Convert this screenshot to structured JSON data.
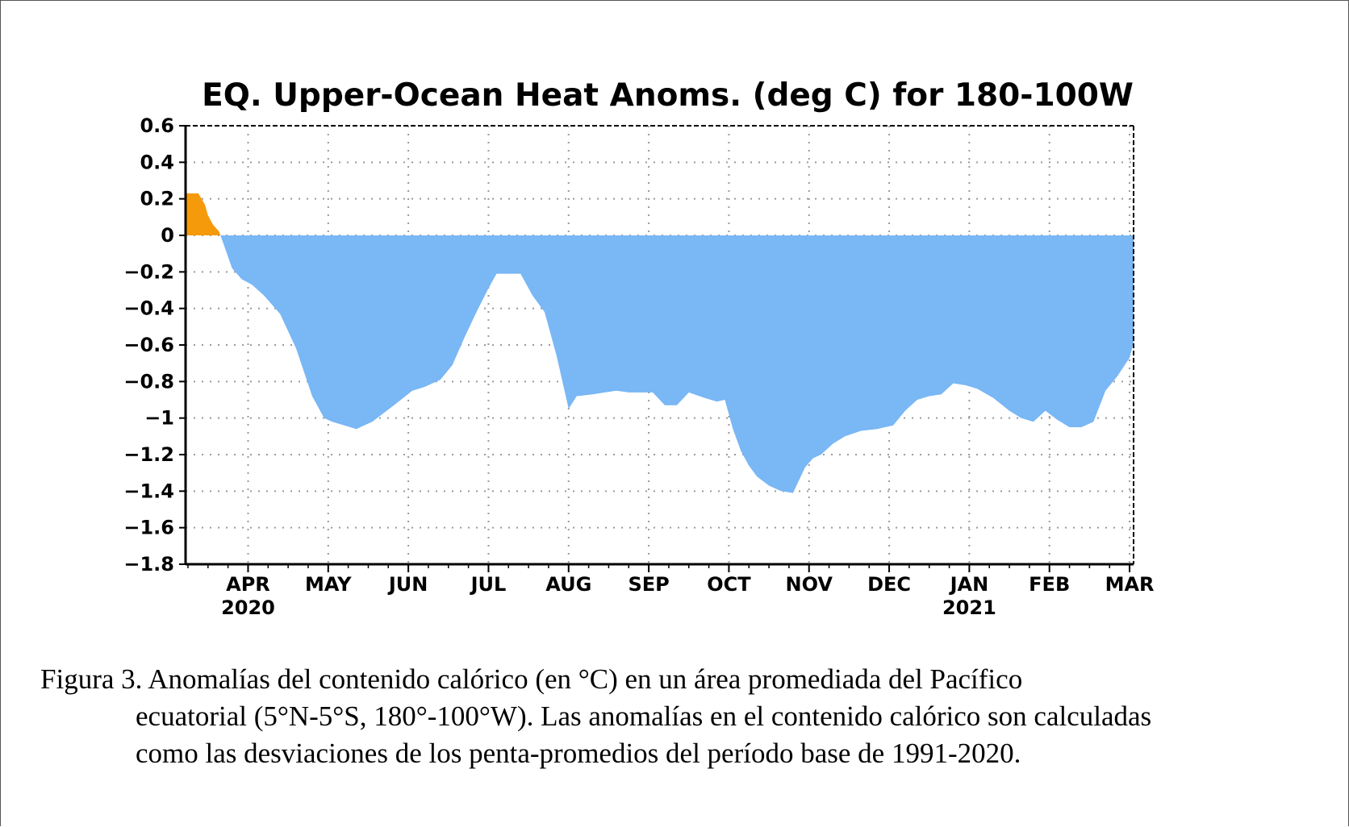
{
  "chart_data": {
    "type": "area",
    "title": "EQ. Upper-Ocean Heat Anoms. (deg C) for 180-100W",
    "xlabel": "",
    "ylabel": "",
    "ylim": [
      -1.8,
      0.6
    ],
    "yticks": [
      "0.6",
      "0.4",
      "0.2",
      "0",
      "-0.2",
      "-0.4",
      "-0.6",
      "-0.8",
      "-1",
      "-1.2",
      "-1.4",
      "-1.6",
      "-1.8"
    ],
    "xticks": [
      {
        "label": "APR",
        "year": "2020",
        "t": 2.0
      },
      {
        "label": "MAY",
        "year": "",
        "t": 3.0
      },
      {
        "label": "JUN",
        "year": "",
        "t": 4.0
      },
      {
        "label": "JUL",
        "year": "",
        "t": 5.0
      },
      {
        "label": "AUG",
        "year": "",
        "t": 6.0
      },
      {
        "label": "SEP",
        "year": "",
        "t": 7.0
      },
      {
        "label": "OCT",
        "year": "",
        "t": 8.0
      },
      {
        "label": "NOV",
        "year": "",
        "t": 9.0
      },
      {
        "label": "DEC",
        "year": "",
        "t": 10.0
      },
      {
        "label": "JAN",
        "year": "2021",
        "t": 11.0
      },
      {
        "label": "FEB",
        "year": "",
        "t": 12.0
      },
      {
        "label": "MAR",
        "year": "",
        "t": 13.0
      }
    ],
    "x_unit": "months since start of Feb 2020",
    "xlim": [
      1.22,
      13.05
    ],
    "grid": true,
    "positive_color": "#f59a0b",
    "negative_color": "#79b7f5",
    "series": [
      {
        "name": "",
        "x": [
          1.22,
          1.38,
          1.46,
          1.5,
          1.56,
          1.64,
          1.72,
          1.8,
          1.92,
          2.05,
          2.2,
          2.4,
          2.6,
          2.8,
          2.95,
          3.05,
          3.2,
          3.35,
          3.55,
          3.7,
          3.85,
          4.05,
          4.2,
          4.4,
          4.55,
          4.7,
          4.85,
          5.0,
          5.1,
          5.25,
          5.4,
          5.55,
          5.7,
          5.85,
          6.0,
          6.1,
          6.3,
          6.45,
          6.6,
          6.75,
          6.9,
          7.05,
          7.2,
          7.35,
          7.5,
          7.7,
          7.85,
          7.95,
          8.05,
          8.15,
          8.25,
          8.35,
          8.5,
          8.65,
          8.8,
          8.95,
          9.05,
          9.15,
          9.3,
          9.45,
          9.65,
          9.85,
          10.05,
          10.2,
          10.35,
          10.5,
          10.65,
          10.8,
          10.95,
          11.1,
          11.3,
          11.5,
          11.65,
          11.8,
          11.95,
          12.1,
          12.25,
          12.4,
          12.55,
          12.7,
          12.85,
          13.0,
          13.05
        ],
        "values": [
          0.23,
          0.23,
          0.17,
          0.11,
          0.06,
          0.02,
          -0.08,
          -0.18,
          -0.24,
          -0.27,
          -0.33,
          -0.43,
          -0.62,
          -0.88,
          -1.0,
          -1.02,
          -1.04,
          -1.06,
          -1.02,
          -0.97,
          -0.92,
          -0.85,
          -0.83,
          -0.79,
          -0.71,
          -0.56,
          -0.42,
          -0.29,
          -0.21,
          -0.21,
          -0.21,
          -0.33,
          -0.42,
          -0.66,
          -0.95,
          -0.88,
          -0.87,
          -0.86,
          -0.85,
          -0.86,
          -0.86,
          -0.86,
          -0.93,
          -0.93,
          -0.86,
          -0.89,
          -0.91,
          -0.9,
          -1.06,
          -1.18,
          -1.26,
          -1.32,
          -1.37,
          -1.4,
          -1.41,
          -1.27,
          -1.22,
          -1.2,
          -1.14,
          -1.1,
          -1.07,
          -1.06,
          -1.04,
          -0.96,
          -0.9,
          -0.88,
          -0.87,
          -0.81,
          -0.82,
          -0.84,
          -0.89,
          -0.96,
          -1.0,
          -1.02,
          -0.96,
          -1.01,
          -1.05,
          -1.05,
          -1.02,
          -0.85,
          -0.77,
          -0.67,
          -0.59
        ]
      }
    ]
  },
  "caption": {
    "line1": "Figura  3. Anomalías  del contenido  calórico  (en °C) en un área promediada  del Pacífico",
    "line2": "ecuatorial (5°N-5°S,  180°-100°W).  Las anomalías  en el contenido  calórico  son calculadas",
    "line3": "como las desviaciones  de los penta-promedios  del período  base de 1991-2020."
  }
}
